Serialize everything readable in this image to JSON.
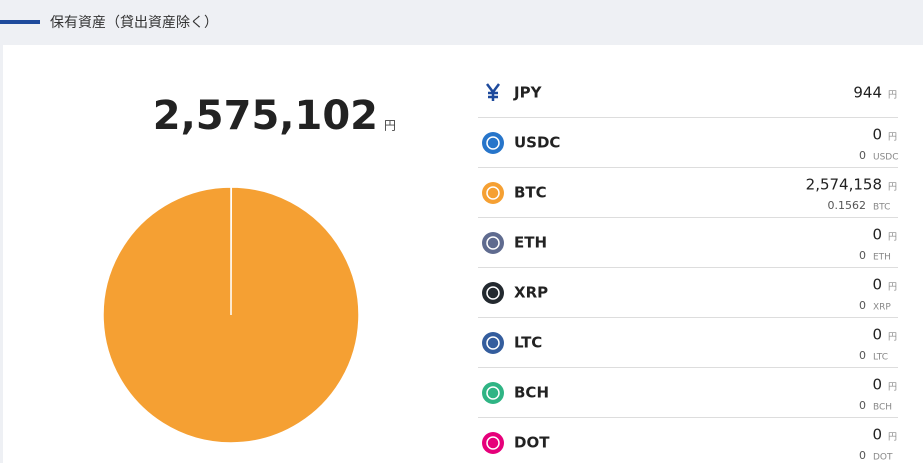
{
  "header": {
    "title": "保有資産（貸出資産除く）"
  },
  "chart_data": {
    "type": "pie",
    "title": "2,575,102",
    "unit": "円",
    "categories": [
      "JPY",
      "USDC",
      "BTC",
      "ETH",
      "XRP",
      "LTC",
      "BCH",
      "DOT"
    ],
    "values": [
      944,
      0,
      2574158,
      0,
      0,
      0,
      0,
      0
    ],
    "value_labels": [
      "944",
      "0",
      "2,574,158",
      "0",
      "0",
      "0",
      "0",
      "0"
    ],
    "colors": [
      "#1e4a9c",
      "#2775ca",
      "#f5a033",
      "#5f6b8f",
      "#23292f",
      "#345d9d",
      "#2fb484",
      "#e6007a"
    ]
  },
  "quantities": [
    "0",
    "0.1562",
    "0",
    "0",
    "0",
    "0",
    "0"
  ]
}
